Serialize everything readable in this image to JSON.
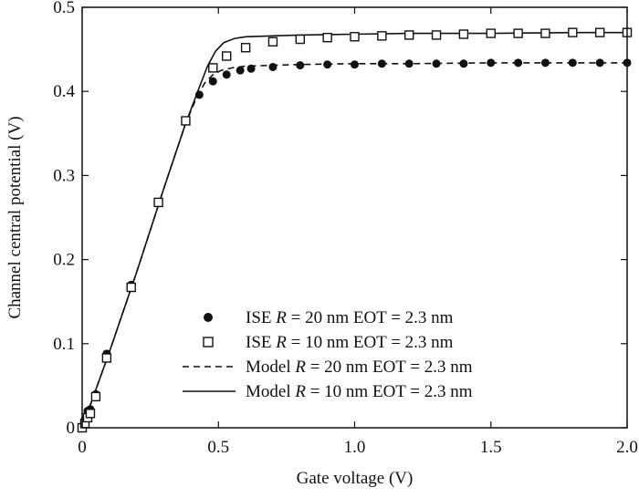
{
  "chart_data": {
    "type": "scatter",
    "title": "",
    "xlabel": "Gate voltage (V)",
    "ylabel": "Channel central potential (V)",
    "xlim": [
      0,
      2.0
    ],
    "ylim": [
      0,
      0.5
    ],
    "xticks": [
      0,
      0.5,
      1.0,
      1.5,
      2.0
    ],
    "xtick_labels": [
      "0",
      "0.5",
      "1.0",
      "1.5",
      "2.0"
    ],
    "yticks": [
      0,
      0.1,
      0.2,
      0.3,
      0.4,
      0.5
    ],
    "ytick_labels": [
      "0",
      "0.1",
      "0.2",
      "0.3",
      "0.4",
      "0.5"
    ],
    "grid": false,
    "legend_position": "lower-right",
    "legend": [
      {
        "marker": "filled-circle",
        "prefix": "ISE ",
        "var": "R",
        "suffix": " = 20 nm EOT = 2.3 nm"
      },
      {
        "marker": "open-square",
        "prefix": "ISE ",
        "var": "R",
        "suffix": " = 10 nm EOT = 2.3 nm"
      },
      {
        "marker": "dashed-line",
        "prefix": "Model ",
        "var": "R",
        "suffix": " = 20 nm EOT = 2.3 nm"
      },
      {
        "marker": "solid-line",
        "prefix": "Model ",
        "var": "R",
        "suffix": " = 10 nm EOT = 2.3 nm"
      }
    ],
    "series": [
      {
        "style": "filled-circle",
        "color": "#111111",
        "x": [
          0.0,
          0.01,
          0.02,
          0.03,
          0.05,
          0.09,
          0.18,
          0.28,
          0.38,
          0.43,
          0.48,
          0.53,
          0.58,
          0.62,
          0.7,
          0.8,
          0.9,
          1.0,
          1.1,
          1.2,
          1.3,
          1.4,
          1.5,
          1.6,
          1.7,
          1.8,
          1.9,
          2.0
        ],
        "y": [
          0.0,
          0.01,
          0.02,
          0.022,
          0.04,
          0.088,
          0.17,
          0.268,
          0.365,
          0.396,
          0.412,
          0.42,
          0.425,
          0.427,
          0.429,
          0.431,
          0.432,
          0.432,
          0.433,
          0.433,
          0.433,
          0.433,
          0.434,
          0.434,
          0.434,
          0.434,
          0.434,
          0.434
        ]
      },
      {
        "style": "open-square",
        "color": "#111111",
        "x": [
          0.0,
          0.01,
          0.02,
          0.03,
          0.05,
          0.09,
          0.18,
          0.28,
          0.38,
          0.48,
          0.53,
          0.6,
          0.7,
          0.8,
          0.9,
          1.0,
          1.1,
          1.2,
          1.3,
          1.4,
          1.5,
          1.6,
          1.7,
          1.8,
          1.9,
          2.0
        ],
        "y": [
          0.0,
          0.005,
          0.012,
          0.017,
          0.037,
          0.083,
          0.167,
          0.268,
          0.365,
          0.428,
          0.442,
          0.452,
          0.459,
          0.462,
          0.464,
          0.465,
          0.466,
          0.467,
          0.467,
          0.468,
          0.469,
          0.469,
          0.469,
          0.47,
          0.47,
          0.47
        ]
      },
      {
        "style": "dashed-line",
        "color": "#111111",
        "x": [
          0.0,
          0.05,
          0.1,
          0.2,
          0.3,
          0.38,
          0.42,
          0.45,
          0.48,
          0.51,
          0.55,
          0.6,
          0.7,
          0.8,
          1.0,
          1.2,
          1.5,
          1.8,
          2.0
        ],
        "y": [
          0.0,
          0.045,
          0.09,
          0.185,
          0.285,
          0.362,
          0.393,
          0.41,
          0.42,
          0.425,
          0.428,
          0.43,
          0.431,
          0.432,
          0.433,
          0.433,
          0.434,
          0.434,
          0.434
        ]
      },
      {
        "style": "solid-line",
        "color": "#111111",
        "x": [
          0.0,
          0.05,
          0.1,
          0.2,
          0.3,
          0.38,
          0.43,
          0.46,
          0.49,
          0.52,
          0.56,
          0.6,
          0.7,
          0.8,
          1.0,
          1.2,
          1.5,
          1.8,
          2.0
        ],
        "y": [
          0.0,
          0.045,
          0.09,
          0.185,
          0.285,
          0.362,
          0.405,
          0.43,
          0.448,
          0.458,
          0.463,
          0.465,
          0.466,
          0.467,
          0.468,
          0.469,
          0.469,
          0.47,
          0.47
        ]
      }
    ]
  }
}
